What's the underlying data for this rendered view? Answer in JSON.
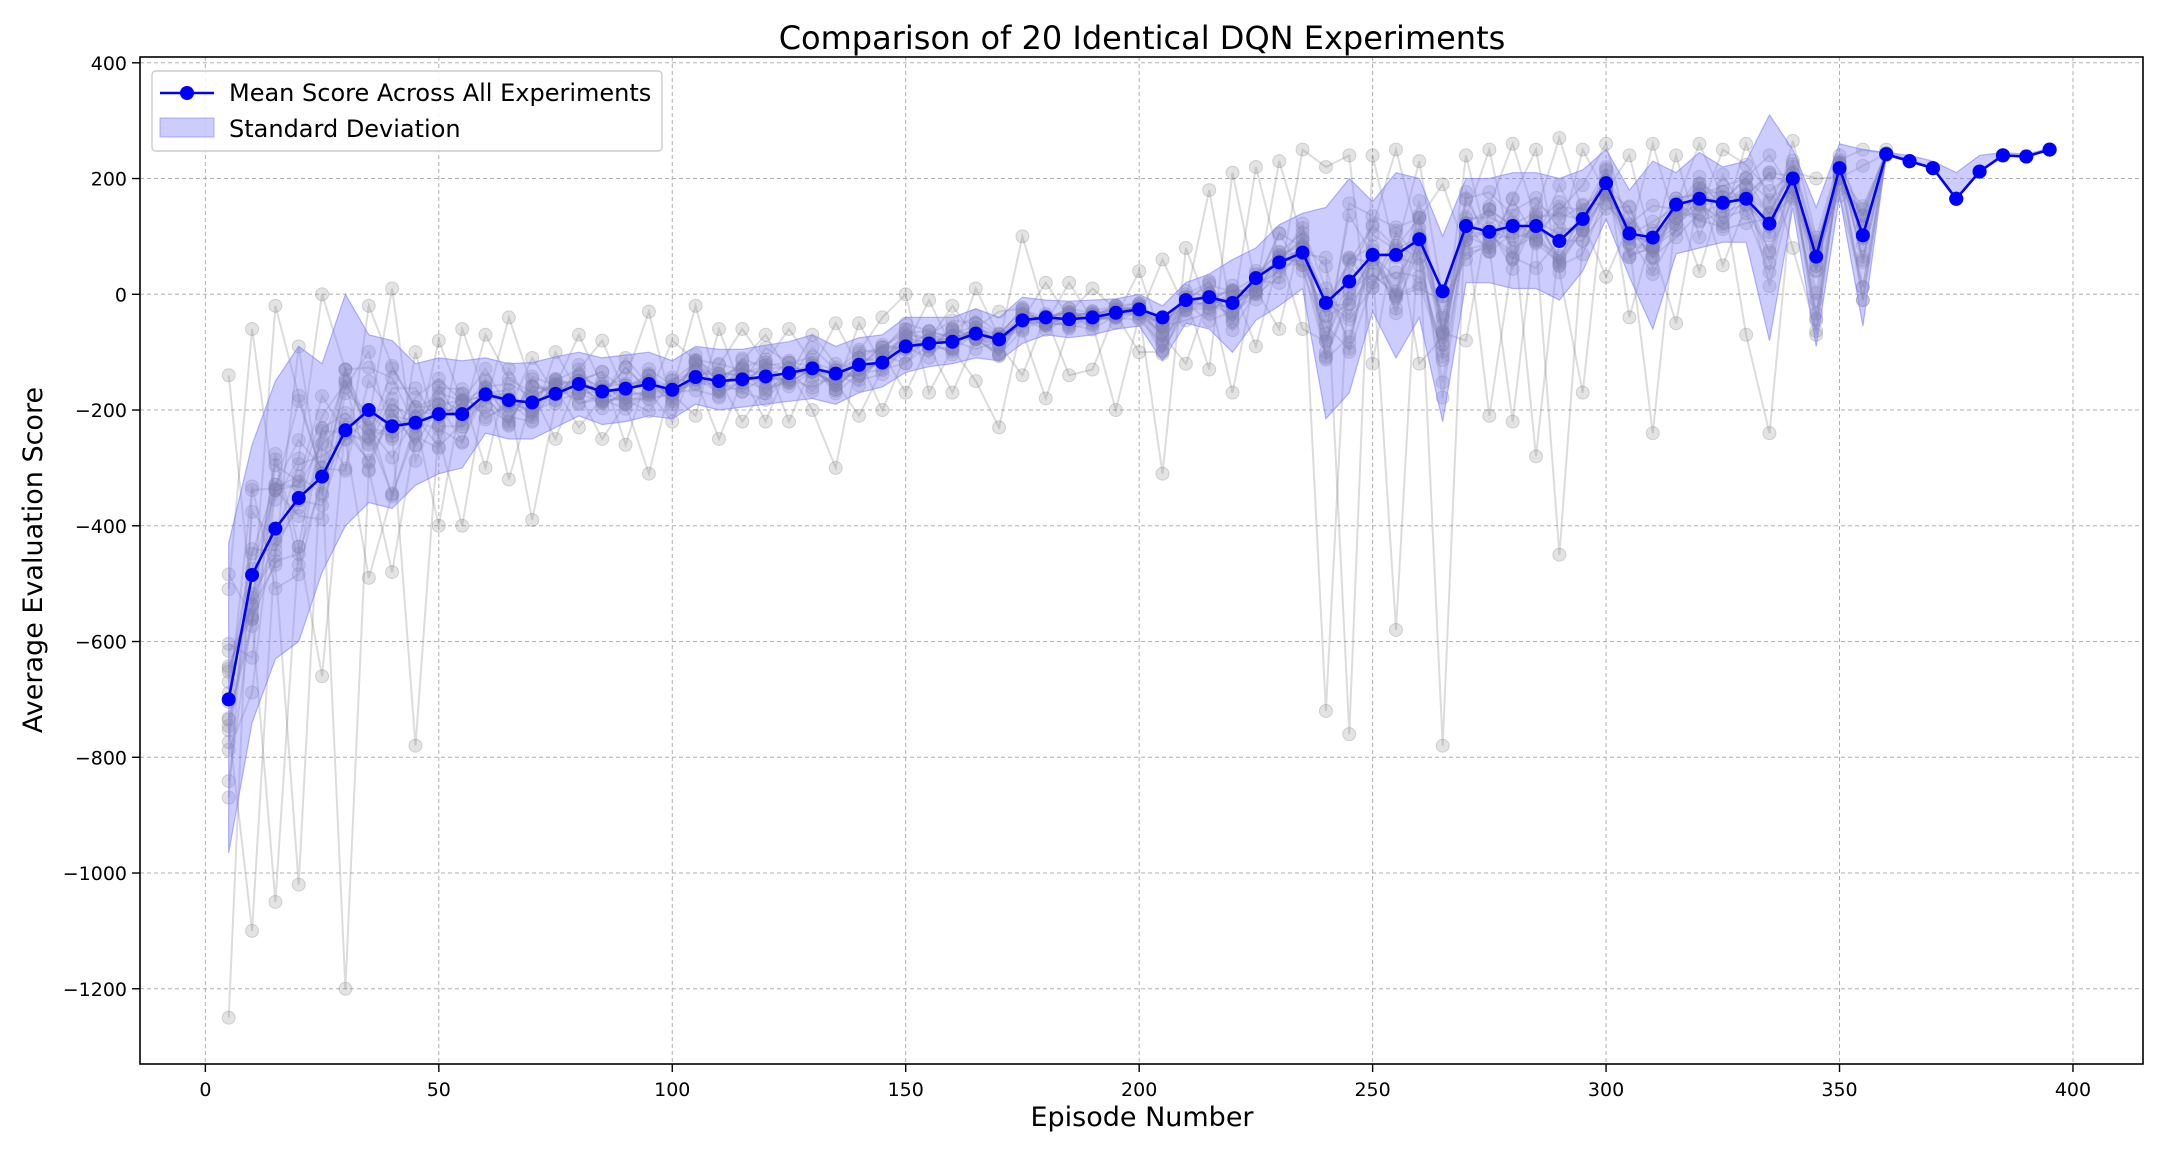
{
  "colors": {
    "mean": "#0000ff",
    "band": "#8080ff",
    "runs": "#808080"
  },
  "chart_data": {
    "type": "line",
    "title": "Comparison of 20 Identical DQN Experiments",
    "xlabel": "Episode Number",
    "ylabel": "Average Evaluation Score",
    "xlim": [
      -14,
      415
    ],
    "ylim": [
      -1330,
      410
    ],
    "xticks": [
      0,
      50,
      100,
      150,
      200,
      250,
      300,
      350,
      400
    ],
    "yticks": [
      -1200,
      -1000,
      -800,
      -600,
      -400,
      -200,
      0,
      200,
      400
    ],
    "grid": true,
    "legend_position": "top-left",
    "legend": [
      "Mean Score Across All Experiments",
      "Standard Deviation"
    ],
    "x": [
      5,
      10,
      15,
      20,
      25,
      30,
      35,
      40,
      45,
      50,
      55,
      60,
      65,
      70,
      75,
      80,
      85,
      90,
      95,
      100,
      105,
      110,
      115,
      120,
      125,
      130,
      135,
      140,
      145,
      150,
      155,
      160,
      165,
      170,
      175,
      180,
      185,
      190,
      195,
      200,
      205,
      210,
      215,
      220,
      225,
      230,
      235,
      240,
      245,
      250,
      255,
      260,
      265,
      270,
      275,
      280,
      285,
      290,
      295,
      300,
      305,
      310,
      315,
      320,
      325,
      330,
      335,
      340,
      345,
      350,
      355,
      360,
      365,
      370,
      375,
      380,
      385,
      390,
      395
    ],
    "series": [
      {
        "name": "Mean Score Across All Experiments",
        "values": [
          -700,
          -485,
          -405,
          -352,
          -315,
          -235,
          -200,
          -228,
          -222,
          -207,
          -207,
          -173,
          -183,
          -187,
          -172,
          -155,
          -168,
          -163,
          -155,
          -165,
          -143,
          -150,
          -147,
          -142,
          -136,
          -128,
          -137,
          -122,
          -118,
          -90,
          -85,
          -82,
          -68,
          -78,
          -45,
          -40,
          -43,
          -40,
          -32,
          -26,
          -40,
          -10,
          -5,
          -15,
          28,
          55,
          72,
          -15,
          22,
          68,
          68,
          95,
          5,
          118,
          108,
          118,
          118,
          92,
          130,
          192,
          105,
          98,
          155,
          165,
          158,
          165,
          122,
          200,
          65,
          218,
          102,
          242,
          230,
          218,
          165,
          212,
          240,
          238,
          250
        ]
      }
    ],
    "std_band": {
      "name": "Standard Deviation",
      "upper": [
        -430,
        -260,
        -150,
        -90,
        -120,
        0,
        -70,
        -80,
        -120,
        -110,
        -115,
        -110,
        -120,
        -118,
        -108,
        -100,
        -110,
        -105,
        -100,
        -115,
        -90,
        -95,
        -95,
        -88,
        -82,
        -70,
        -90,
        -75,
        -70,
        -40,
        -40,
        -40,
        -25,
        -40,
        -5,
        -10,
        -12,
        -10,
        -8,
        0,
        -20,
        20,
        35,
        60,
        80,
        120,
        140,
        150,
        200,
        160,
        210,
        200,
        100,
        200,
        200,
        210,
        210,
        200,
        215,
        250,
        180,
        230,
        210,
        245,
        220,
        230,
        310,
        250,
        150,
        260,
        250,
        245,
        240,
        230,
        210,
        240,
        245,
        242,
        252
      ],
      "lower": [
        -965,
        -740,
        -630,
        -600,
        -480,
        -400,
        -360,
        -370,
        -330,
        -310,
        -300,
        -240,
        -250,
        -250,
        -230,
        -210,
        -225,
        -220,
        -210,
        -215,
        -190,
        -200,
        -195,
        -190,
        -185,
        -180,
        -190,
        -170,
        -160,
        -135,
        -125,
        -120,
        -110,
        -115,
        -85,
        -70,
        -75,
        -70,
        -60,
        -55,
        -115,
        -50,
        -60,
        -100,
        -45,
        -20,
        10,
        -215,
        -170,
        -30,
        -110,
        -40,
        -220,
        20,
        20,
        10,
        10,
        -10,
        40,
        130,
        30,
        -60,
        70,
        80,
        90,
        90,
        -80,
        150,
        -90,
        170,
        -55,
        240,
        230,
        218,
        165,
        212,
        240,
        238,
        250
      ]
    },
    "runs_range": {
      "name": "Individual experiment runs",
      "upper": [
        -140,
        -60,
        -20,
        -90,
        0,
        -130,
        -20,
        10,
        -100,
        -80,
        -60,
        -70,
        -40,
        -110,
        -100,
        -70,
        -80,
        -110,
        -30,
        -80,
        -20,
        -60,
        -60,
        -70,
        -60,
        -70,
        -50,
        -50,
        -40,
        0,
        -10,
        -20,
        10,
        -30,
        100,
        20,
        20,
        10,
        -20,
        40,
        60,
        80,
        180,
        210,
        220,
        230,
        250,
        220,
        240,
        240,
        250,
        230,
        190,
        240,
        250,
        260,
        250,
        270,
        250,
        260,
        240,
        260,
        240,
        260,
        250,
        260,
        240,
        265,
        200,
        240,
        250,
        250,
        230,
        218,
        165,
        212,
        240,
        238,
        250
      ],
      "lower": [
        -1250,
        -1100,
        -1050,
        -1020,
        -660,
        -1200,
        -490,
        -480,
        -780,
        -400,
        -400,
        -300,
        -320,
        -390,
        -250,
        -230,
        -250,
        -260,
        -310,
        -220,
        -210,
        -250,
        -220,
        -220,
        -220,
        -200,
        -300,
        -210,
        -200,
        -170,
        -170,
        -170,
        -150,
        -230,
        -140,
        -180,
        -140,
        -130,
        -200,
        -100,
        -310,
        -120,
        -130,
        -170,
        -90,
        -60,
        -60,
        -720,
        -760,
        -120,
        -580,
        -120,
        -780,
        -80,
        -210,
        -220,
        -280,
        -450,
        -170,
        30,
        -40,
        -240,
        -50,
        40,
        50,
        -70,
        -240,
        80,
        -70,
        170,
        -10,
        240,
        230,
        218,
        165,
        212,
        240,
        238,
        250
      ]
    },
    "runs_count": 20
  }
}
